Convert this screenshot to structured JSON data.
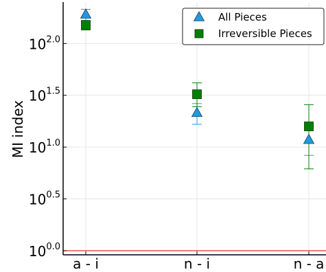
{
  "chart_data": {
    "type": "scatter",
    "ylabel": "MI index",
    "xlabel": "",
    "title": "",
    "y_scale": "log10",
    "categories": [
      "a - i",
      "n - i",
      "n - a"
    ],
    "yticks": [
      {
        "exponent": 0.0,
        "base": "10",
        "sup": "0.0"
      },
      {
        "exponent": 0.5,
        "base": "10",
        "sup": "0.5"
      },
      {
        "exponent": 1.0,
        "base": "10",
        "sup": "1.0"
      },
      {
        "exponent": 1.5,
        "base": "10",
        "sup": "1.5"
      },
      {
        "exponent": 2.0,
        "base": "10",
        "sup": "2.0"
      }
    ],
    "ylim_exponent": [
      -0.04,
      2.4
    ],
    "grid": true,
    "legend_position": "top-right",
    "reference_line": {
      "y_exponent": 0.0,
      "color": "#e0301e"
    },
    "series": [
      {
        "name": "All Pieces",
        "marker": "triangle",
        "color": "#1f9bde",
        "y_exponent": [
          2.28,
          1.33,
          1.07
        ],
        "err_low_exponent": [
          2.22,
          1.22,
          0.92
        ],
        "err_high_exponent": [
          2.33,
          1.42,
          1.2
        ]
      },
      {
        "name": "Irreversible Pieces",
        "marker": "square",
        "color": "#008000",
        "y_exponent": [
          2.18,
          1.51,
          1.2
        ],
        "err_low_exponent": [
          2.13,
          1.39,
          0.79
        ],
        "err_high_exponent": [
          2.21,
          1.62,
          1.41
        ]
      }
    ]
  }
}
